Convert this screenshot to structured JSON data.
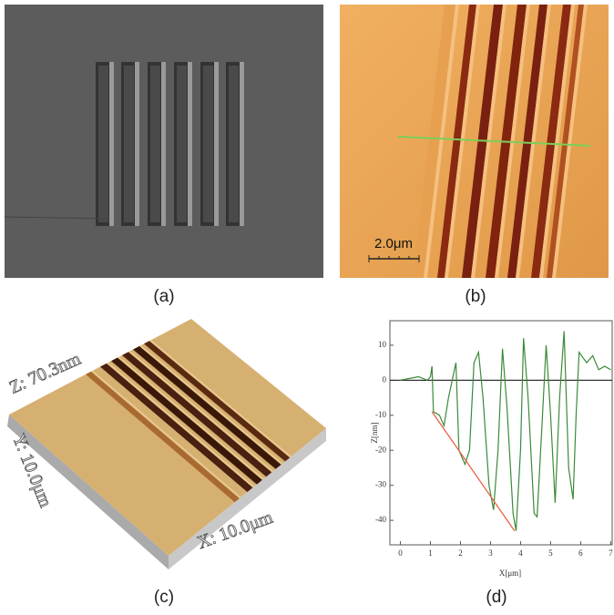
{
  "panels": [
    {
      "label": "(a)"
    },
    {
      "label": "(b)",
      "scale_bar": "2.0μm"
    },
    {
      "label": "(c)",
      "axis_labels": [
        "Z: 70.3nm",
        "Y: 10.0μm",
        "X: 10.0μm"
      ]
    },
    {
      "label": "(d)",
      "chart_data": {
        "type": "line",
        "x_label": "X[μm]",
        "y_label": "Z[nm]",
        "xlim": [
          -0.35,
          7.05
        ],
        "ylim": [
          -47,
          17
        ],
        "xticks": [
          0,
          1,
          2,
          3,
          4,
          5,
          6,
          7
        ],
        "yticks": [
          10,
          0,
          -10,
          -20,
          -30,
          -40
        ],
        "series": [
          {
            "color": "#3a8a3a",
            "x": [
              0,
              0.3,
              0.6,
              0.9,
              1.0,
              1.05,
              1.1,
              1.3,
              1.45,
              1.6,
              1.75,
              1.85,
              1.95,
              2.15,
              2.3,
              2.45,
              2.6,
              2.75,
              2.95,
              3.1,
              3.25,
              3.4,
              3.55,
              3.75,
              3.85,
              4.0,
              4.1,
              4.25,
              4.45,
              4.55,
              4.7,
              4.85,
              5.0,
              5.15,
              5.3,
              5.45,
              5.6,
              5.75,
              5.85,
              5.95,
              6.2,
              6.4,
              6.6,
              6.8,
              7.0
            ],
            "values": [
              0,
              0.5,
              1,
              0,
              1,
              4,
              -9,
              -10,
              -13,
              -5,
              1,
              5,
              -20,
              -24,
              -20,
              5,
              8,
              -5,
              -30,
              -37,
              -20,
              9,
              -8,
              -38,
              -43,
              -20,
              12,
              -5,
              -38,
              -39,
              -15,
              10,
              -10,
              -35,
              -5,
              14,
              -25,
              -34,
              -10,
              8,
              5,
              7,
              3,
              4,
              3
            ]
          },
          {
            "color": "#e85a3a",
            "x": [
              1.05,
              3.8
            ],
            "values": [
              -9,
              -43
            ]
          }
        ]
      }
    }
  ]
}
